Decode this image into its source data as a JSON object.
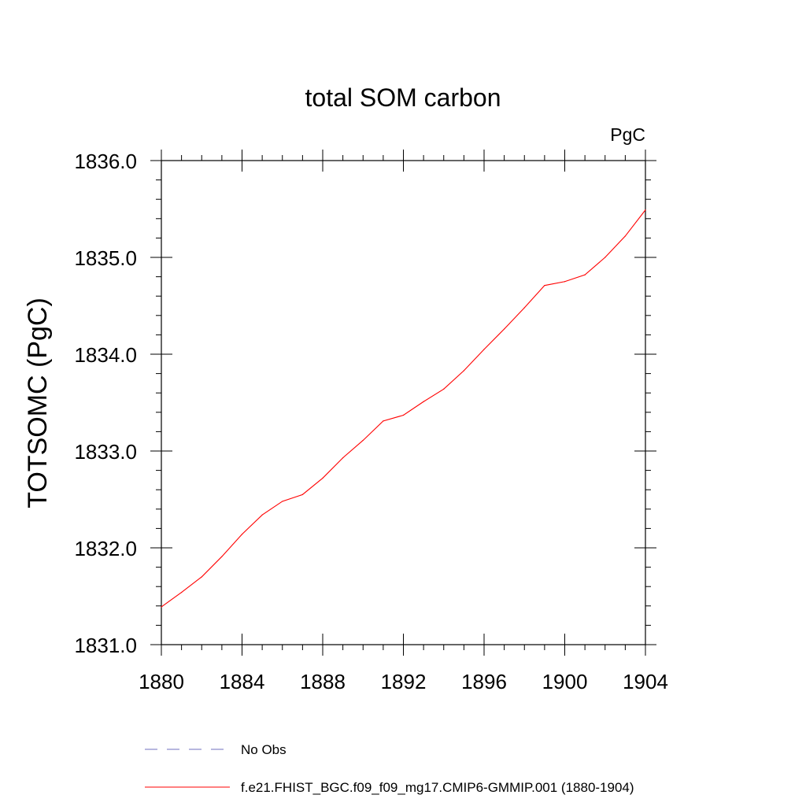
{
  "chart_data": {
    "type": "line",
    "title": "total SOM carbon",
    "units_label": "PgC",
    "xlabel": "",
    "ylabel": "TOTSOMC  (PgC)",
    "xlim": [
      1880,
      1904
    ],
    "ylim": [
      1831.0,
      1836.0
    ],
    "x_ticks": [
      1880,
      1884,
      1888,
      1892,
      1896,
      1900,
      1904
    ],
    "x_tick_labels": [
      "1880",
      "1884",
      "1888",
      "1892",
      "1896",
      "1900",
      "1904"
    ],
    "y_ticks": [
      1831.0,
      1832.0,
      1833.0,
      1834.0,
      1835.0,
      1836.0
    ],
    "y_tick_labels": [
      "1831.0",
      "1832.0",
      "1833.0",
      "1834.0",
      "1835.0",
      "1836.0"
    ],
    "x": [
      1880,
      1881,
      1882,
      1883,
      1884,
      1885,
      1886,
      1887,
      1888,
      1889,
      1890,
      1891,
      1892,
      1893,
      1894,
      1895,
      1896,
      1897,
      1898,
      1899,
      1900,
      1901,
      1902,
      1903,
      1904
    ],
    "series": [
      {
        "name": "f.e21.FHIST_BGC.f09_f09_mg17.CMIP6-GMMIP.001 (1880-1904)",
        "color": "#ff0000",
        "dash": "solid",
        "values": [
          1831.39,
          1831.54,
          1831.7,
          1831.91,
          1832.14,
          1832.34,
          1832.48,
          1832.55,
          1832.72,
          1832.93,
          1833.11,
          1833.31,
          1833.37,
          1833.51,
          1833.64,
          1833.83,
          1834.05,
          1834.26,
          1834.48,
          1834.71,
          1834.75,
          1834.82,
          1835.0,
          1835.22,
          1835.49
        ]
      }
    ],
    "legend": {
      "placement": "bottom-left",
      "entries": [
        {
          "label": "No Obs",
          "color": "#6f6fbf",
          "dash": "dashed"
        },
        {
          "label": "f.e21.FHIST_BGC.f09_f09_mg17.CMIP6-GMMIP.001 (1880-1904)",
          "color": "#ff0000",
          "dash": "solid"
        }
      ]
    }
  }
}
